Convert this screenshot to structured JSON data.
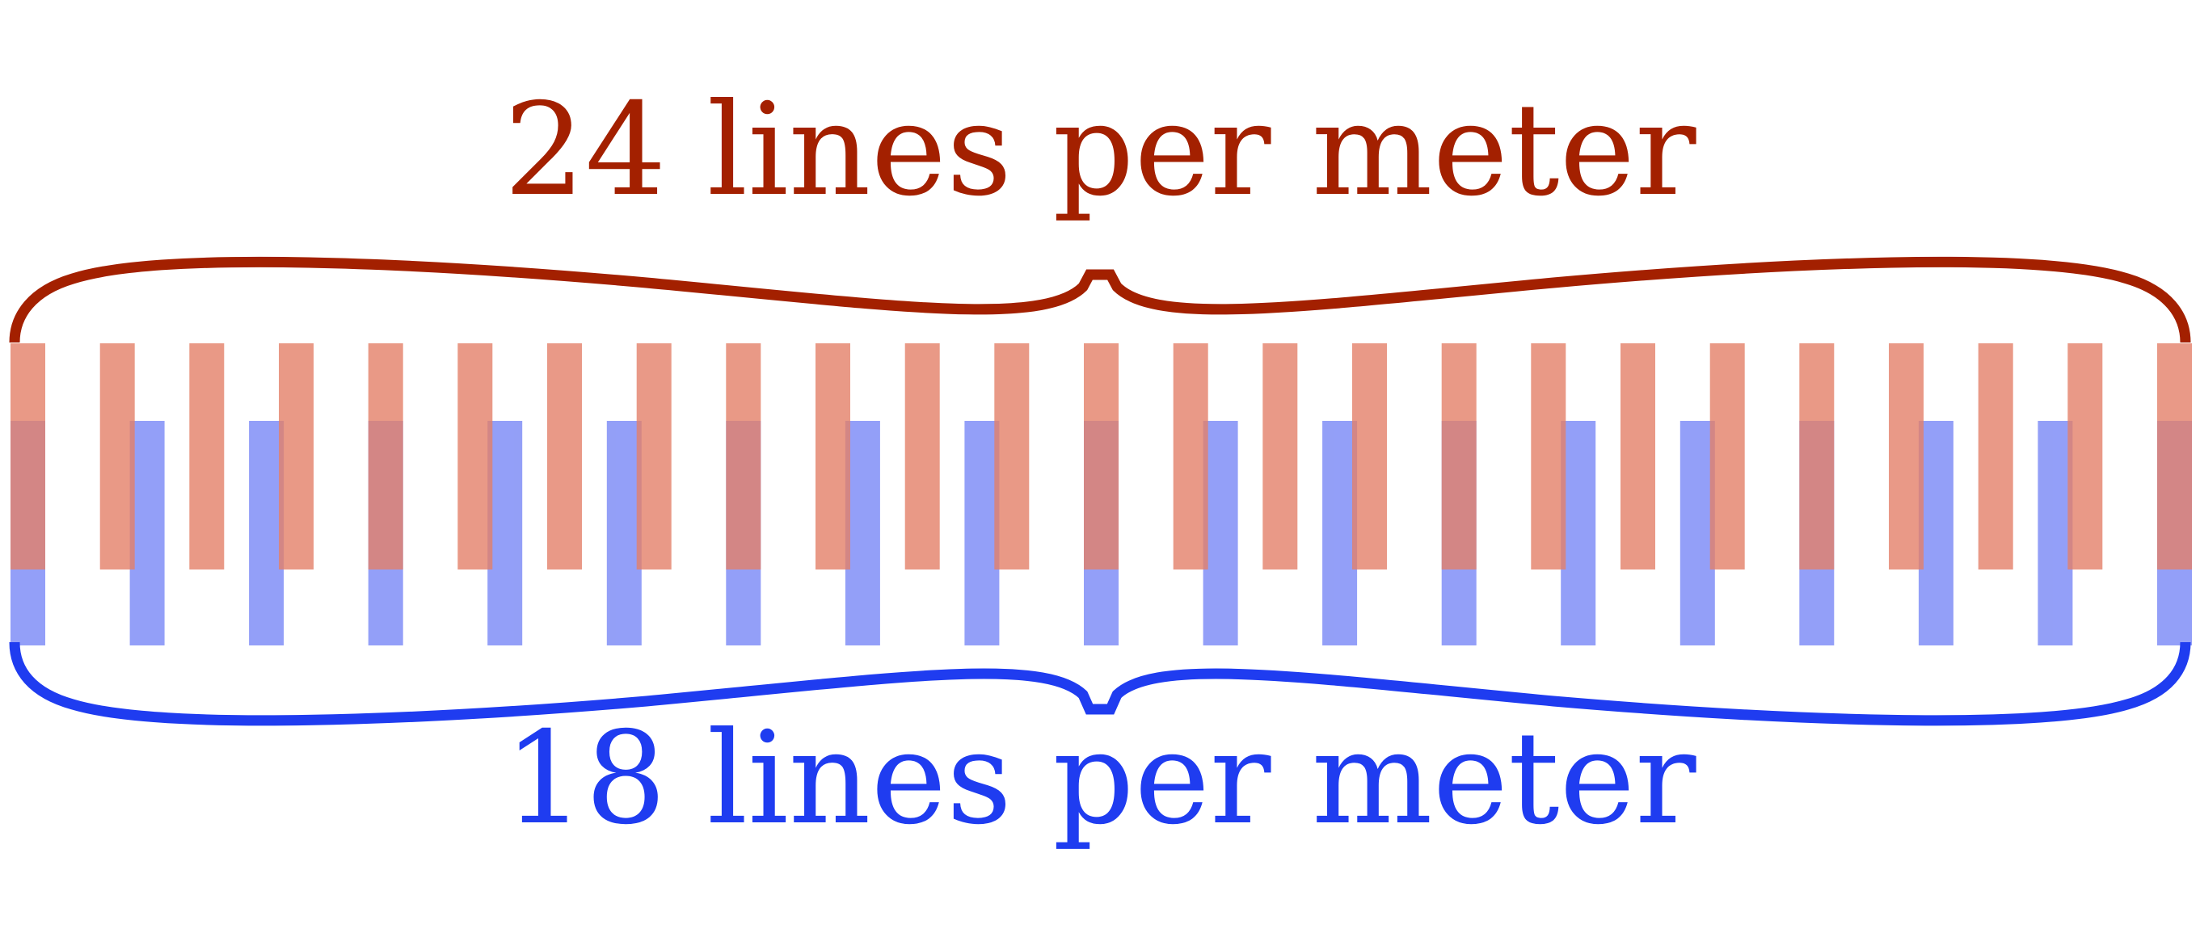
{
  "top_grating": {
    "label": "24 lines per meter",
    "line_count": 24,
    "color": "#a32000",
    "bar_color": "#e48069"
  },
  "bottom_grating": {
    "label": "18 lines per meter",
    "line_count": 18,
    "color": "#1f3cf0",
    "bar_color": "#6f7ff5"
  },
  "overlap_color": "#7a4fa8"
}
